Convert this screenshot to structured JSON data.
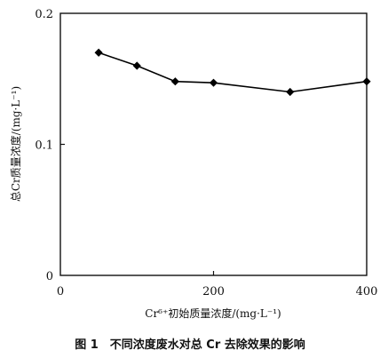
{
  "chart_data": {
    "type": "line",
    "caption": "图 1　不同浓度废水对总 Cr 去除效果的影响",
    "xlabel": "Cr⁶⁺初始质量浓度/(mg·L⁻¹)",
    "ylabel": "总Cr质量浓度/(mg·L⁻¹)",
    "xlim": [
      0,
      400
    ],
    "ylim": [
      0,
      0.2
    ],
    "x_ticks": [
      {
        "value": 0,
        "label": "0"
      },
      {
        "value": 200,
        "label": "200"
      },
      {
        "value": 400,
        "label": "400"
      }
    ],
    "y_ticks": [
      {
        "value": 0,
        "label": "0"
      },
      {
        "value": 0.1,
        "label": "0.1"
      },
      {
        "value": 0.2,
        "label": "0.2"
      }
    ],
    "grid": false,
    "series": [
      {
        "marker": "diamond",
        "color": "#000000",
        "x": [
          50,
          100,
          150,
          200,
          300,
          400
        ],
        "y": [
          0.17,
          0.16,
          0.148,
          0.147,
          0.14,
          0.148
        ]
      }
    ]
  }
}
